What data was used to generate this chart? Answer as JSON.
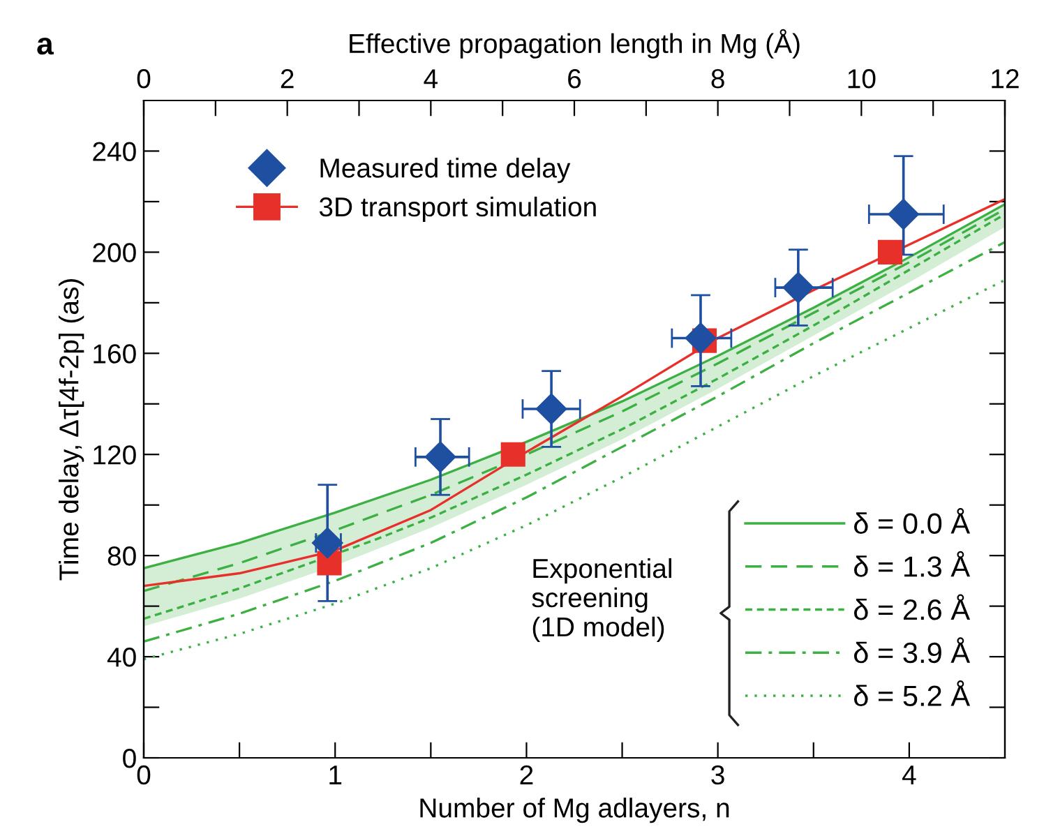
{
  "chart_data": {
    "type": "line",
    "xlabel": "Number of Mg adlayers, n",
    "ylabel": "Time delay, Δτ[4f-2p] (as)",
    "x2label": "Effective propagation length in Mg (Å)",
    "legend_title": "Exponential\nscreening\n(1D model)",
    "annotations": [
      "a"
    ],
    "xlim": [
      0,
      4.5
    ],
    "xticks": [
      0,
      1,
      2,
      3,
      4,
      {
        "value": 0.5,
        "label": null
      },
      {
        "value": 1.5,
        "label": null
      },
      {
        "value": 2.5,
        "label": null
      },
      {
        "value": 3.5,
        "label": null
      }
    ],
    "x2lim": [
      0,
      12
    ],
    "x2ticks": [
      0,
      2,
      4,
      6,
      8,
      10,
      12,
      {
        "value": 1,
        "label": null
      },
      {
        "value": 3,
        "label": null
      },
      {
        "value": 5,
        "label": null
      },
      {
        "value": 7,
        "label": null
      },
      {
        "value": 9,
        "label": null
      },
      {
        "value": 11,
        "label": null
      }
    ],
    "ylim": [
      0,
      260
    ],
    "yticks": [
      0,
      40,
      80,
      120,
      160,
      200,
      240,
      {
        "value": 20,
        "label": null
      },
      {
        "value": 60,
        "label": null
      },
      {
        "value": 100,
        "label": null
      },
      {
        "value": 140,
        "label": null
      },
      {
        "value": 180,
        "label": null
      },
      {
        "value": 220,
        "label": null
      }
    ],
    "legend": "top left",
    "grid": false,
    "series": [
      {
        "name": "δ = 0.0 Å",
        "type": "line",
        "color": "#3cb043",
        "line_style": "solid",
        "x": [
          0,
          0.5,
          1,
          1.5,
          2,
          2.5,
          3,
          3.5,
          4,
          4.5
        ],
        "values": [
          75,
          85,
          97,
          110,
          125,
          141,
          159,
          178,
          198,
          219
        ],
        "lower": [
          52,
          63,
          76,
          91,
          108,
          126,
          146,
          167,
          188,
          210
        ],
        "upper": [
          75,
          85,
          97,
          110,
          125,
          141,
          159,
          178,
          198,
          219
        ]
      },
      {
        "name": "δ = 1.3 Å",
        "type": "line",
        "color": "#3cb043",
        "line_style": "dashed",
        "x": [
          0,
          0.5,
          1,
          1.5,
          2,
          2.5,
          3,
          3.5,
          4,
          4.5
        ],
        "values": [
          66,
          77,
          90,
          104,
          120,
          137,
          156,
          176,
          196,
          217
        ]
      },
      {
        "name": "δ = 2.6 Å",
        "type": "line",
        "color": "#3cb043",
        "line_style": "shortdash",
        "x": [
          0,
          0.5,
          1.2,
          1.5,
          2,
          2.5,
          3,
          3.5,
          4,
          4.5
        ],
        "values": [
          55,
          67,
          86,
          95,
          112,
          130,
          150,
          171,
          193,
          215
        ]
      },
      {
        "name": "δ = 3.9 Å",
        "type": "line",
        "color": "#3cb043",
        "line_style": "dashdot",
        "x": [
          0,
          0.5,
          1,
          1.5,
          2,
          2.5,
          3,
          3.5,
          4,
          4.5
        ],
        "values": [
          46,
          57,
          70,
          85,
          103,
          123,
          143,
          164,
          184,
          204
        ]
      },
      {
        "name": "δ = 5.2 Å",
        "type": "line",
        "color": "#3cb043",
        "line_style": "dotted",
        "x": [
          0,
          0.5,
          1,
          1.5,
          2,
          2.5,
          3,
          3.5,
          4,
          4.5
        ],
        "values": [
          39,
          49,
          61,
          75,
          92,
          111,
          131,
          151,
          170,
          189
        ]
      },
      {
        "type": "line",
        "color": "#e8302a",
        "line_style": "solid",
        "x": [
          0,
          0.5,
          1,
          1.5,
          2,
          2.5,
          3,
          3.5,
          4,
          4.5
        ],
        "values": [
          68,
          73,
          82,
          98,
          121,
          143,
          166,
          185,
          203,
          221
        ]
      },
      {
        "name": "3D transport simulation",
        "type": "scatter",
        "marker": "square",
        "color": "#e8302a",
        "x": [
          0.97,
          1.93,
          2.93,
          3.9
        ],
        "values": [
          77,
          120,
          165,
          200
        ]
      },
      {
        "name": "Measured time delay",
        "type": "scatter",
        "marker": "diamond",
        "color": "#1f4fa0",
        "x": [
          0.96,
          1.55,
          2.13,
          2.91,
          3.42,
          3.97
        ],
        "values": [
          85,
          119,
          138,
          166,
          186,
          215
        ],
        "errors": [
          [
            62,
            108
          ],
          [
            104,
            134
          ],
          [
            123,
            153
          ],
          [
            147,
            183
          ],
          [
            171,
            201
          ],
          [
            199,
            238
          ]
        ],
        "xerrors": [
          [
            0.9,
            1.03
          ],
          [
            1.42,
            1.7
          ],
          [
            1.98,
            2.28
          ],
          [
            2.76,
            3.07
          ],
          [
            3.3,
            3.6
          ],
          [
            3.79,
            4.18
          ]
        ]
      }
    ]
  }
}
